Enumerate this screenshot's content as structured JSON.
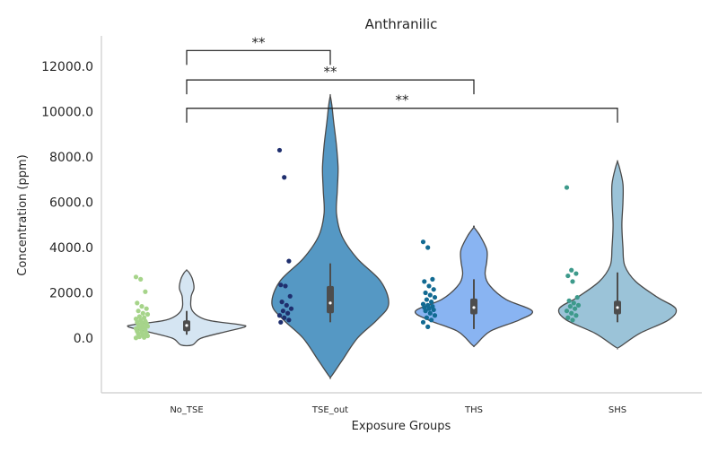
{
  "chart_data": {
    "type": "violin",
    "title": "Anthranilic",
    "xlabel": "Exposure Groups",
    "ylabel": "Concentration (ppm)",
    "ylim": [
      -2400,
      13800
    ],
    "yticks": [
      0,
      2000,
      4000,
      6000,
      8000,
      10000,
      12000
    ],
    "ytick_labels": [
      "0.0",
      "2000.0",
      "4000.0",
      "6000.0",
      "8000.0",
      "10000.0",
      "12000.0"
    ],
    "grid": false,
    "categories": [
      "No_TSE",
      "TSE_out",
      "THS",
      "SHS"
    ],
    "groups": [
      {
        "name": "No_TSE",
        "violin_color": "#d5e5f2",
        "point_color": "#a6d48a",
        "box": {
          "q1": 300,
          "median": 560,
          "q3": 780,
          "whisker_low": 150,
          "whisker_high": 1200
        },
        "points": [
          2700,
          2600,
          2050,
          1550,
          1400,
          1300,
          1200,
          1100,
          1050,
          950,
          900,
          850,
          800,
          750,
          700,
          680,
          650,
          600,
          560,
          520,
          500,
          460,
          420,
          400,
          350,
          300,
          260,
          220,
          180,
          140,
          100,
          60,
          30,
          10
        ],
        "violin": [
          [
            -300,
            0.02
          ],
          [
            0,
            0.05
          ],
          [
            300,
            0.14
          ],
          [
            500,
            0.2
          ],
          [
            600,
            0.18
          ],
          [
            800,
            0.07
          ],
          [
            1200,
            0.02
          ],
          [
            1800,
            0.015
          ],
          [
            2200,
            0.025
          ],
          [
            2600,
            0.02
          ],
          [
            2900,
            0.008
          ],
          [
            3000,
            0.0
          ]
        ]
      },
      {
        "name": "TSE_out",
        "violin_color": "#5598c4",
        "point_color": "#1f2f6e",
        "box": {
          "q1": 1100,
          "median": 1550,
          "q3": 2300,
          "whisker_low": 700,
          "whisker_high": 3300
        },
        "points": [
          8300,
          7100,
          3400,
          2350,
          2300,
          1850,
          1600,
          1450,
          1300,
          1200,
          1100,
          1000,
          900,
          800,
          700
        ],
        "violin": [
          [
            -1700,
            0.002
          ],
          [
            -1000,
            0.03
          ],
          [
            0,
            0.07
          ],
          [
            800,
            0.12
          ],
          [
            1500,
            0.15
          ],
          [
            2500,
            0.13
          ],
          [
            3500,
            0.07
          ],
          [
            4500,
            0.03
          ],
          [
            5500,
            0.016
          ],
          [
            6500,
            0.018
          ],
          [
            7500,
            0.02
          ],
          [
            8500,
            0.016
          ],
          [
            9500,
            0.009
          ],
          [
            10300,
            0.004
          ],
          [
            10700,
            0.0
          ]
        ]
      },
      {
        "name": "THS",
        "violin_color": "#89b4f2",
        "point_color": "#126a92",
        "box": {
          "q1": 1050,
          "median": 1350,
          "q3": 1750,
          "whisker_low": 400,
          "whisker_high": 2600
        },
        "points": [
          4250,
          4000,
          2600,
          2500,
          2300,
          2150,
          2000,
          1900,
          1800,
          1700,
          1600,
          1500,
          1450,
          1400,
          1350,
          1300,
          1250,
          1200,
          1100,
          1000,
          900,
          800,
          700,
          500
        ],
        "violin": [
          [
            -300,
            0.005
          ],
          [
            300,
            0.05
          ],
          [
            800,
            0.14
          ],
          [
            1200,
            0.18
          ],
          [
            1700,
            0.1
          ],
          [
            2300,
            0.05
          ],
          [
            2800,
            0.035
          ],
          [
            3400,
            0.04
          ],
          [
            3900,
            0.04
          ],
          [
            4500,
            0.02
          ],
          [
            4900,
            0.0
          ]
        ]
      },
      {
        "name": "SHS",
        "violin_color": "#9bc3d8",
        "point_color": "#3d9a8b",
        "box": {
          "q1": 1050,
          "median": 1350,
          "q3": 1650,
          "whisker_low": 700,
          "whisker_high": 2900
        },
        "points": [
          6650,
          3000,
          2850,
          2750,
          2500,
          1800,
          1650,
          1550,
          1450,
          1400,
          1300,
          1200,
          1100,
          1000,
          900,
          800
        ],
        "violin": [
          [
            -400,
            0.005
          ],
          [
            200,
            0.06
          ],
          [
            800,
            0.14
          ],
          [
            1300,
            0.16
          ],
          [
            1800,
            0.11
          ],
          [
            2500,
            0.05
          ],
          [
            3200,
            0.02
          ],
          [
            4000,
            0.015
          ],
          [
            5000,
            0.012
          ],
          [
            6000,
            0.015
          ],
          [
            6800,
            0.015
          ],
          [
            7500,
            0.006
          ],
          [
            7800,
            0.0
          ]
        ]
      }
    ],
    "significance": [
      {
        "from": "No_TSE",
        "to": "TSE_out",
        "y": 12700,
        "label": "**"
      },
      {
        "from": "No_TSE",
        "to": "THS",
        "y": 11400,
        "label": "**"
      },
      {
        "from": "No_TSE",
        "to": "SHS",
        "y": 10150,
        "label": "**"
      }
    ]
  }
}
